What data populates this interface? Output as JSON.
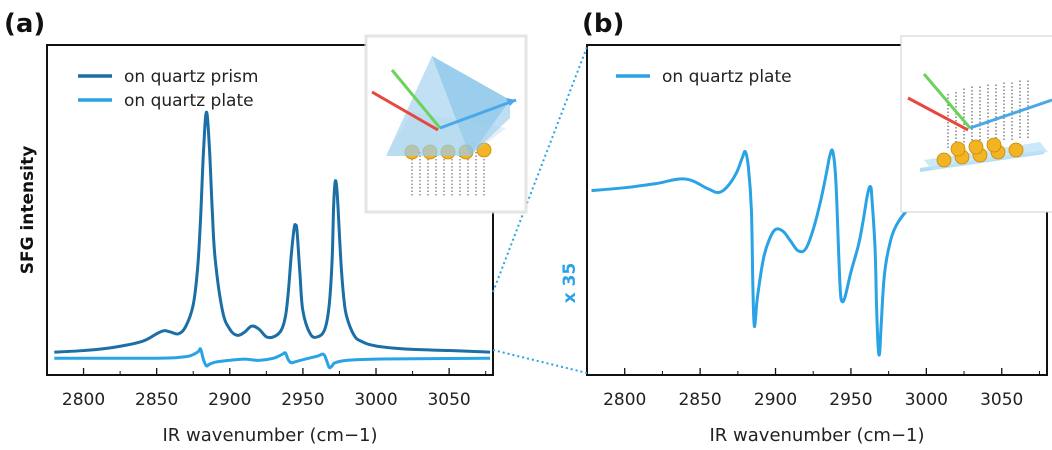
{
  "colors": {
    "prism": "#1b6fa6",
    "plate": "#2aa3e6",
    "gold": "#f2b423",
    "axis": "#111111"
  },
  "chart_data": [
    {
      "panel_label": "(a)",
      "type": "line",
      "xlabel": "IR wavenumber (cm−1)",
      "ylabel": "SFG intensity",
      "xlim": [
        2775,
        3080
      ],
      "ylim": [
        -0.3,
        10.5
      ],
      "xticks": [
        2800,
        2850,
        2900,
        2950,
        3000,
        3050
      ],
      "legend": "top-left",
      "grid": false,
      "series": [
        {
          "name": "on quartz prism",
          "color": "#1b6fa6",
          "x": [
            2780,
            2800,
            2820,
            2840,
            2850,
            2855,
            2860,
            2865,
            2870,
            2875,
            2878,
            2880,
            2882,
            2884,
            2886,
            2888,
            2890,
            2895,
            2900,
            2905,
            2910,
            2915,
            2920,
            2925,
            2930,
            2935,
            2938,
            2940,
            2942,
            2944,
            2945,
            2946,
            2948,
            2950,
            2955,
            2960,
            2965,
            2968,
            2970,
            2971,
            2972,
            2973,
            2974,
            2976,
            2978,
            2980,
            2985,
            2990,
            3000,
            3020,
            3050,
            3078
          ],
          "y": [
            0.45,
            0.5,
            0.6,
            0.8,
            1.05,
            1.15,
            1.1,
            1.05,
            1.3,
            2.0,
            3.2,
            4.8,
            7.0,
            8.3,
            7.2,
            5.1,
            3.5,
            1.8,
            1.2,
            1.0,
            1.1,
            1.3,
            1.2,
            0.95,
            0.95,
            1.15,
            1.6,
            2.4,
            3.6,
            4.5,
            4.6,
            4.4,
            3.0,
            1.8,
            1.05,
            0.95,
            1.2,
            2.0,
            3.5,
            5.2,
            6.0,
            5.9,
            5.2,
            3.4,
            2.2,
            1.6,
            1.0,
            0.8,
            0.65,
            0.55,
            0.5,
            0.45
          ]
        },
        {
          "name": "on quartz plate",
          "color": "#2aa3e6",
          "x": [
            2780,
            2800,
            2850,
            2870,
            2878,
            2880,
            2882,
            2884,
            2886,
            2890,
            2900,
            2910,
            2920,
            2930,
            2936,
            2938,
            2940,
            2942,
            2944,
            2950,
            2960,
            2964,
            2966,
            2968,
            2970,
            2972,
            2980,
            3000,
            3050,
            3078
          ],
          "y": [
            0.25,
            0.25,
            0.25,
            0.3,
            0.45,
            0.55,
            0.2,
            0.0,
            0.05,
            0.12,
            0.18,
            0.22,
            0.18,
            0.25,
            0.38,
            0.42,
            0.2,
            0.1,
            0.12,
            0.2,
            0.32,
            0.38,
            0.2,
            -0.05,
            0.0,
            0.1,
            0.18,
            0.22,
            0.24,
            0.25
          ]
        }
      ]
    },
    {
      "panel_label": "(b)",
      "type": "line",
      "xlabel": "IR wavenumber (cm−1)",
      "ylabel": "x 35",
      "xlim": [
        2775,
        3080
      ],
      "ylim": [
        -8.5,
        8.5
      ],
      "xticks": [
        2800,
        2850,
        2900,
        2950,
        3000,
        3050
      ],
      "legend": "top-left",
      "grid": false,
      "series": [
        {
          "name": "on quartz plate",
          "color": "#2aa3e6",
          "x": [
            2778,
            2800,
            2820,
            2840,
            2855,
            2862,
            2868,
            2874,
            2878,
            2880,
            2882,
            2884,
            2885,
            2886,
            2888,
            2892,
            2896,
            2900,
            2905,
            2910,
            2915,
            2920,
            2925,
            2930,
            2934,
            2936,
            2938,
            2940,
            2942,
            2943,
            2944,
            2946,
            2950,
            2955,
            2958,
            2961,
            2963,
            2964,
            2966,
            2967,
            2968,
            2969,
            2970,
            2972,
            2975,
            2980,
            2990,
            3000,
            3020,
            3050,
            3078
          ],
          "y": [
            1.0,
            1.15,
            1.35,
            1.6,
            1.1,
            0.9,
            1.2,
            1.9,
            2.7,
            3.0,
            2.2,
            0.0,
            -4.0,
            -6.0,
            -4.5,
            -2.5,
            -1.5,
            -1.0,
            -1.1,
            -1.6,
            -2.1,
            -2.0,
            -1.0,
            0.5,
            2.0,
            2.8,
            3.0,
            1.5,
            -2.5,
            -4.2,
            -4.7,
            -4.5,
            -3.2,
            -1.8,
            -0.6,
            0.8,
            1.2,
            0.5,
            -2.0,
            -5.0,
            -7.0,
            -7.4,
            -6.0,
            -3.5,
            -2.0,
            -0.8,
            0.2,
            0.7,
            1.2,
            1.6,
            1.9
          ]
        }
      ]
    }
  ]
}
